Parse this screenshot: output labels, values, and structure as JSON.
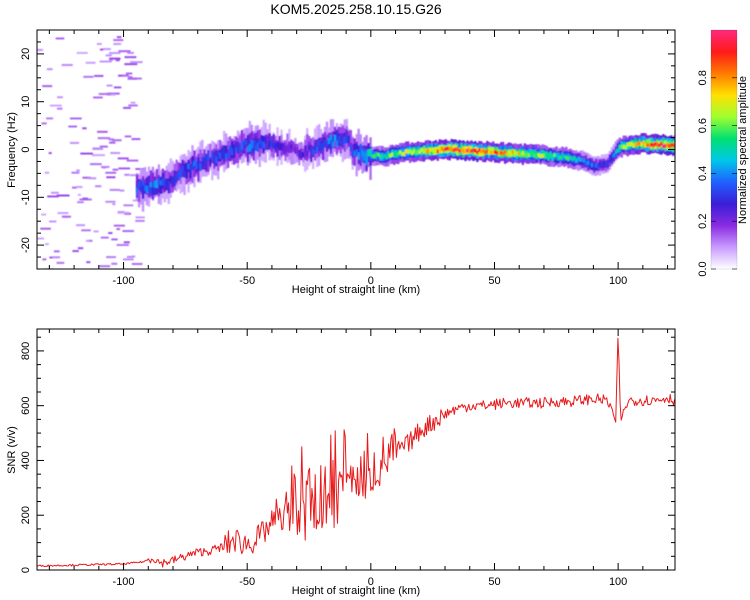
{
  "title": "KOM5.2025.258.10.15.G26",
  "chart_data": [
    {
      "type": "heatmap",
      "xlabel": "Height of straight line (km)",
      "ylabel": "Frequency (Hz)",
      "xlim": [
        -135,
        123
      ],
      "ylim": [
        -25,
        25
      ],
      "xticks": [
        -100,
        -50,
        0,
        50,
        100
      ],
      "yticks": [
        -20,
        -10,
        0,
        10,
        20
      ],
      "colorbar": {
        "label": "Normalized spectral amplitude",
        "range": [
          0,
          1
        ],
        "ticks": [
          "0.0",
          "0.2",
          "0.4",
          "0.6",
          "0.8"
        ],
        "tick_values": [
          0,
          0.2,
          0.4,
          0.6,
          0.8
        ],
        "colors": [
          "#ffffff",
          "#c89bff",
          "#8a2be2",
          "#3a1ed6",
          "#2060ff",
          "#00c8e8",
          "#00e070",
          "#a0ff30",
          "#ffe000",
          "#ff7a00",
          "#ff1a1a",
          "#ff2a80"
        ]
      },
      "ridge": {
        "height_km": [
          -95,
          -88,
          -82,
          -78,
          -72,
          -66,
          -60,
          -54,
          -48,
          -42,
          -36,
          -30,
          -24,
          -20,
          -15,
          -10,
          -8,
          -4,
          0,
          5,
          10,
          20,
          30,
          40,
          50,
          60,
          70,
          80,
          86,
          90,
          95,
          98,
          100,
          105,
          110,
          115,
          123
        ],
        "frequency_hz": [
          -8,
          -7.5,
          -7,
          -5,
          -3.5,
          -2,
          -1,
          0.5,
          1,
          1.2,
          0.5,
          -0.5,
          0,
          1,
          2,
          2,
          0,
          -1,
          -1.2,
          -1.5,
          -0.8,
          -0.3,
          0,
          -0.3,
          -0.6,
          -0.9,
          -1.2,
          -1.8,
          -2.5,
          -3.5,
          -3,
          -1,
          0.5,
          1,
          1.2,
          1,
          0.8
        ],
        "amplitude": [
          0.35,
          0.4,
          0.3,
          0.3,
          0.35,
          0.3,
          0.35,
          0.3,
          0.4,
          0.3,
          0.25,
          0.2,
          0.3,
          0.35,
          0.4,
          0.3,
          0.3,
          0.45,
          0.5,
          0.55,
          0.6,
          0.7,
          0.85,
          0.9,
          0.8,
          0.7,
          0.6,
          0.5,
          0.4,
          0.35,
          0.3,
          0.4,
          0.55,
          0.7,
          0.8,
          0.9,
          0.9
        ]
      }
    },
    {
      "type": "line",
      "xlabel": "Height of straight line (km)",
      "ylabel": "SNR (v/v)",
      "xlim": [
        -135,
        123
      ],
      "ylim": [
        0,
        880
      ],
      "xticks": [
        -100,
        -50,
        0,
        50,
        100
      ],
      "yticks": [
        0,
        200,
        400,
        600,
        800
      ],
      "series": [
        {
          "color": "#e8191a",
          "x": [
            -135,
            -120,
            -100,
            -92,
            -88,
            -85,
            -80,
            -75,
            -70,
            -65,
            -60,
            -55,
            -50,
            -45,
            -40,
            -35,
            -30,
            -25,
            -20,
            -15,
            -10,
            -5,
            0,
            5,
            10,
            15,
            20,
            25,
            30,
            35,
            40,
            45,
            50,
            55,
            60,
            65,
            70,
            75,
            80,
            85,
            90,
            95,
            97,
            99,
            100,
            101,
            103,
            105,
            110,
            115,
            120,
            123
          ],
          "y": [
            15,
            18,
            22,
            30,
            45,
            25,
            35,
            50,
            65,
            70,
            85,
            110,
            95,
            120,
            170,
            200,
            220,
            230,
            250,
            270,
            310,
            330,
            360,
            400,
            430,
            460,
            510,
            540,
            570,
            590,
            600,
            600,
            605,
            610,
            610,
            610,
            610,
            615,
            615,
            620,
            625,
            620,
            600,
            540,
            880,
            540,
            600,
            620,
            620,
            620,
            630,
            620
          ]
        }
      ]
    }
  ]
}
